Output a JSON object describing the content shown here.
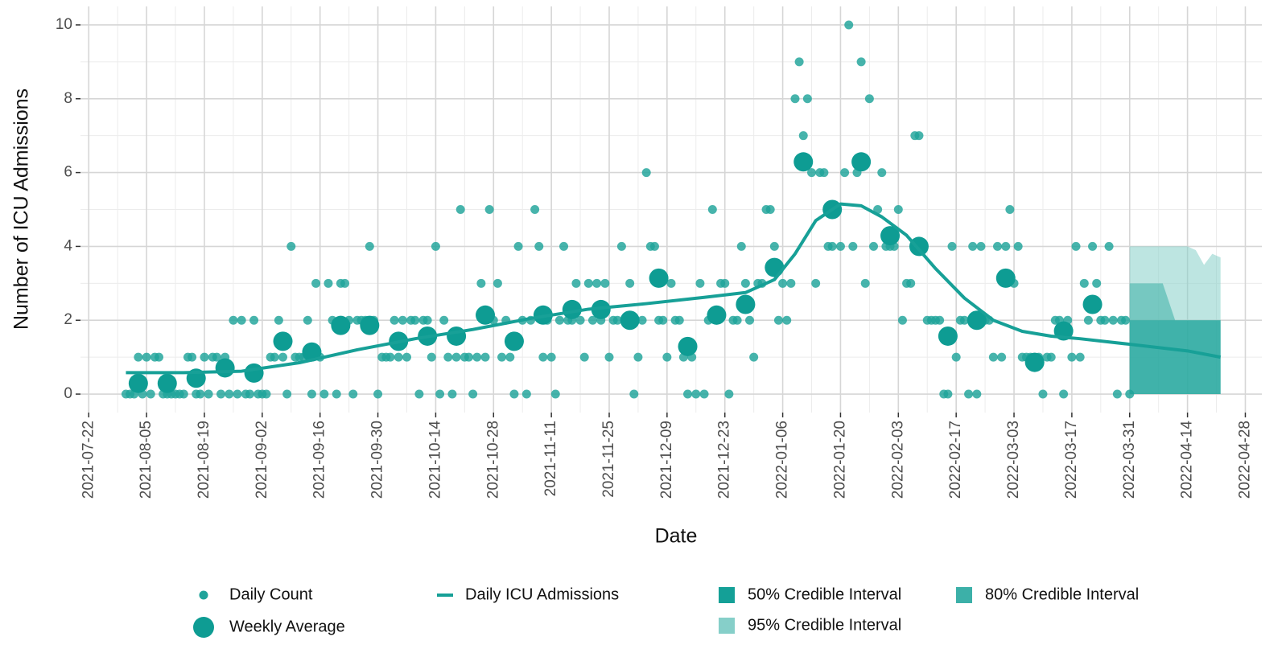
{
  "chart_data": {
    "type": "scatter",
    "xlabel": "Date",
    "ylabel": "Number of ICU Admissions",
    "xlim": [
      "2021-07-20",
      "2022-05-02"
    ],
    "ylim": [
      -0.5,
      10.5
    ],
    "xticks": [
      "2021-07-22",
      "2021-08-05",
      "2021-08-19",
      "2021-09-02",
      "2021-09-16",
      "2021-09-30",
      "2021-10-14",
      "2021-10-28",
      "2021-11-11",
      "2021-11-25",
      "2021-12-09",
      "2021-12-23",
      "2022-01-06",
      "2022-01-20",
      "2022-02-03",
      "2022-02-17",
      "2022-03-03",
      "2022-03-17",
      "2022-03-31",
      "2022-04-14",
      "2022-04-28"
    ],
    "yticks": [
      0,
      2,
      4,
      6,
      8,
      10
    ],
    "grid": true,
    "bands": [
      {
        "name": "95% Credible Interval",
        "color": "#86cfc9",
        "x": [
          "2022-03-31",
          "2022-04-04",
          "2022-04-08",
          "2022-04-11",
          "2022-04-14",
          "2022-04-16",
          "2022-04-18",
          "2022-04-20",
          "2022-04-22"
        ],
        "lower": [
          0,
          0,
          0,
          0,
          0,
          0,
          0,
          0,
          0
        ],
        "upper": [
          4,
          4,
          4,
          4,
          4,
          3.9,
          3.5,
          3.8,
          3.7
        ]
      },
      {
        "name": "80% Credible Interval",
        "color": "#3cb0a8",
        "x": [
          "2022-03-31",
          "2022-04-04",
          "2022-04-08",
          "2022-04-11",
          "2022-04-14",
          "2022-04-16",
          "2022-04-18",
          "2022-04-20",
          "2022-04-22"
        ],
        "lower": [
          0,
          0,
          0,
          0,
          0,
          0,
          0,
          0,
          0
        ],
        "upper": [
          3,
          3,
          3,
          2,
          2,
          2,
          2,
          2,
          2
        ]
      },
      {
        "name": "50% Credible Interval",
        "color": "#14a097",
        "x": [
          "2022-03-31",
          "2022-04-04",
          "2022-04-08",
          "2022-04-11",
          "2022-04-14",
          "2022-04-16",
          "2022-04-18",
          "2022-04-20",
          "2022-04-22"
        ],
        "lower": [
          0,
          0,
          0,
          0,
          0,
          0,
          0,
          0,
          0
        ],
        "upper": [
          2,
          2,
          2,
          2,
          2,
          2,
          2,
          2,
          2
        ]
      }
    ],
    "series": [
      {
        "name": "Daily Count",
        "type": "scatter",
        "color": "#1fa39a",
        "x": [
          "2021-07-31",
          "2021-08-01",
          "2021-08-02",
          "2021-08-03",
          "2021-08-04",
          "2021-08-05",
          "2021-08-06",
          "2021-08-07",
          "2021-08-08",
          "2021-08-09",
          "2021-08-10",
          "2021-08-11",
          "2021-08-12",
          "2021-08-13",
          "2021-08-14",
          "2021-08-15",
          "2021-08-16",
          "2021-08-17",
          "2021-08-18",
          "2021-08-19",
          "2021-08-20",
          "2021-08-21",
          "2021-08-22",
          "2021-08-23",
          "2021-08-24",
          "2021-08-25",
          "2021-08-26",
          "2021-08-27",
          "2021-08-28",
          "2021-08-29",
          "2021-08-30",
          "2021-08-31",
          "2021-09-01",
          "2021-09-02",
          "2021-09-03",
          "2021-09-04",
          "2021-09-05",
          "2021-09-06",
          "2021-09-07",
          "2021-09-08",
          "2021-09-09",
          "2021-09-10",
          "2021-09-11",
          "2021-09-12",
          "2021-09-13",
          "2021-09-14",
          "2021-09-15",
          "2021-09-16",
          "2021-09-17",
          "2021-09-18",
          "2021-09-19",
          "2021-09-20",
          "2021-09-21",
          "2021-09-22",
          "2021-09-23",
          "2021-09-24",
          "2021-09-25",
          "2021-09-26",
          "2021-09-27",
          "2021-09-28",
          "2021-09-29",
          "2021-09-30",
          "2021-10-01",
          "2021-10-02",
          "2021-10-03",
          "2021-10-04",
          "2021-10-05",
          "2021-10-06",
          "2021-10-07",
          "2021-10-08",
          "2021-10-09",
          "2021-10-10",
          "2021-10-11",
          "2021-10-12",
          "2021-10-13",
          "2021-10-14",
          "2021-10-15",
          "2021-10-16",
          "2021-10-17",
          "2021-10-18",
          "2021-10-19",
          "2021-10-20",
          "2021-10-21",
          "2021-10-22",
          "2021-10-23",
          "2021-10-24",
          "2021-10-25",
          "2021-10-26",
          "2021-10-27",
          "2021-10-28",
          "2021-10-29",
          "2021-10-30",
          "2021-10-31",
          "2021-11-01",
          "2021-11-02",
          "2021-11-03",
          "2021-11-04",
          "2021-11-05",
          "2021-11-06",
          "2021-11-07",
          "2021-11-08",
          "2021-11-09",
          "2021-11-10",
          "2021-11-11",
          "2021-11-12",
          "2021-11-13",
          "2021-11-14",
          "2021-11-15",
          "2021-11-16",
          "2021-11-17",
          "2021-11-18",
          "2021-11-19",
          "2021-11-20",
          "2021-11-21",
          "2021-11-22",
          "2021-11-23",
          "2021-11-24",
          "2021-11-25",
          "2021-11-26",
          "2021-11-27",
          "2021-11-28",
          "2021-11-29",
          "2021-11-30",
          "2021-12-01",
          "2021-12-02",
          "2021-12-03",
          "2021-12-04",
          "2021-12-05",
          "2021-12-06",
          "2021-12-07",
          "2021-12-08",
          "2021-12-09",
          "2021-12-10",
          "2021-12-11",
          "2021-12-12",
          "2021-12-13",
          "2021-12-14",
          "2021-12-15",
          "2021-12-16",
          "2021-12-17",
          "2021-12-18",
          "2021-12-19",
          "2021-12-20",
          "2021-12-21",
          "2021-12-22",
          "2021-12-23",
          "2021-12-24",
          "2021-12-25",
          "2021-12-26",
          "2021-12-27",
          "2021-12-28",
          "2021-12-29",
          "2021-12-30",
          "2021-12-31",
          "2022-01-01",
          "2022-01-02",
          "2022-01-03",
          "2022-01-04",
          "2022-01-05",
          "2022-01-06",
          "2022-01-07",
          "2022-01-08",
          "2022-01-09",
          "2022-01-10",
          "2022-01-11",
          "2022-01-12",
          "2022-01-13",
          "2022-01-14",
          "2022-01-15",
          "2022-01-16",
          "2022-01-17",
          "2022-01-18",
          "2022-01-19",
          "2022-01-20",
          "2022-01-21",
          "2022-01-22",
          "2022-01-23",
          "2022-01-24",
          "2022-01-25",
          "2022-01-26",
          "2022-01-27",
          "2022-01-28",
          "2022-01-29",
          "2022-01-30",
          "2022-01-31",
          "2022-02-01",
          "2022-02-02",
          "2022-02-03",
          "2022-02-04",
          "2022-02-05",
          "2022-02-06",
          "2022-02-07",
          "2022-02-08",
          "2022-02-09",
          "2022-02-10",
          "2022-02-11",
          "2022-02-12",
          "2022-02-13",
          "2022-02-14",
          "2022-02-15",
          "2022-02-16",
          "2022-02-17",
          "2022-02-18",
          "2022-02-19",
          "2022-02-20",
          "2022-02-21",
          "2022-02-22",
          "2022-02-23",
          "2022-02-24",
          "2022-02-25",
          "2022-02-26",
          "2022-02-27",
          "2022-02-28",
          "2022-03-01",
          "2022-03-02",
          "2022-03-03",
          "2022-03-04",
          "2022-03-05",
          "2022-03-06",
          "2022-03-07",
          "2022-03-08",
          "2022-03-09",
          "2022-03-10",
          "2022-03-11",
          "2022-03-12",
          "2022-03-13",
          "2022-03-14",
          "2022-03-15",
          "2022-03-16",
          "2022-03-17",
          "2022-03-18",
          "2022-03-19",
          "2022-03-20",
          "2022-03-21",
          "2022-03-22",
          "2022-03-23",
          "2022-03-24",
          "2022-03-25",
          "2022-03-26",
          "2022-03-27",
          "2022-03-28",
          "2022-03-29",
          "2022-03-30",
          "2022-03-31"
        ],
        "values": [
          0,
          0,
          0,
          1,
          0,
          1,
          0,
          1,
          1,
          0,
          0,
          0,
          0,
          0,
          0,
          1,
          1,
          0,
          0,
          1,
          0,
          1,
          1,
          0,
          1,
          0,
          2,
          0,
          2,
          0,
          0,
          2,
          0,
          0,
          0,
          1,
          1,
          2,
          1,
          0,
          4,
          1,
          1,
          1,
          2,
          0,
          3,
          1,
          0,
          3,
          2,
          0,
          3,
          3,
          2,
          0,
          2,
          2,
          2,
          4,
          2,
          0,
          1,
          1,
          1,
          2,
          1,
          2,
          1,
          2,
          2,
          0,
          2,
          2,
          1,
          4,
          0,
          2,
          1,
          0,
          1,
          5,
          1,
          1,
          0,
          1,
          3,
          1,
          5,
          2,
          3,
          1,
          2,
          1,
          0,
          4,
          2,
          0,
          2,
          5,
          4,
          1,
          2,
          1,
          0,
          2,
          4,
          2,
          2,
          3,
          2,
          1,
          3,
          2,
          3,
          2,
          3,
          1,
          2,
          2,
          4,
          2,
          3,
          0,
          1,
          2,
          6,
          4,
          4,
          2,
          2,
          1,
          3,
          2,
          2,
          1,
          0,
          1,
          0,
          3,
          0,
          2,
          5,
          2,
          3,
          3,
          0,
          2,
          2,
          4,
          3,
          2,
          1,
          3,
          3,
          5,
          5,
          4,
          2,
          3,
          2,
          3,
          8,
          9,
          7,
          8,
          6,
          3,
          6,
          6,
          4,
          4,
          5,
          4,
          6,
          10,
          4,
          6,
          9,
          3,
          8,
          4,
          5,
          6,
          4,
          4,
          4,
          5,
          2,
          3,
          3,
          7,
          7,
          4,
          2,
          2,
          2,
          2,
          0,
          0,
          4,
          1,
          2,
          2,
          0,
          4,
          0,
          4,
          2,
          2,
          1,
          4,
          1,
          4,
          5,
          3,
          4,
          1,
          1,
          1,
          1,
          1,
          0,
          1,
          1,
          2,
          2,
          0,
          2,
          1,
          4,
          1,
          3,
          2,
          4,
          3,
          2,
          2,
          4,
          2,
          0,
          2,
          2,
          0
        ]
      },
      {
        "name": "Weekly Average",
        "type": "scatter",
        "color": "#0e9c93",
        "x": [
          "2021-08-03",
          "2021-08-10",
          "2021-08-17",
          "2021-08-24",
          "2021-08-31",
          "2021-09-07",
          "2021-09-14",
          "2021-09-21",
          "2021-09-28",
          "2021-10-05",
          "2021-10-12",
          "2021-10-19",
          "2021-10-26",
          "2021-11-02",
          "2021-11-09",
          "2021-11-16",
          "2021-11-23",
          "2021-11-30",
          "2021-12-07",
          "2021-12-14",
          "2021-12-21",
          "2021-12-28",
          "2022-01-04",
          "2022-01-11",
          "2022-01-18",
          "2022-01-25",
          "2022-02-01",
          "2022-02-08",
          "2022-02-15",
          "2022-02-22",
          "2022-03-01",
          "2022-03-08",
          "2022-03-15",
          "2022-03-22"
        ],
        "values": [
          0.29,
          0.29,
          0.43,
          0.71,
          0.57,
          1.43,
          1.14,
          1.86,
          1.86,
          1.43,
          1.57,
          1.57,
          2.14,
          1.43,
          2.14,
          2.29,
          2.29,
          2.0,
          3.14,
          1.29,
          2.14,
          2.43,
          3.43,
          6.29,
          5.0,
          6.29,
          4.29,
          4.0,
          1.57,
          2.0,
          3.14,
          0.86,
          1.71,
          2.43
        ]
      },
      {
        "name": "Daily ICU Admissions",
        "type": "line",
        "color": "#17a097",
        "x": [
          "2021-07-31",
          "2021-08-14",
          "2021-08-28",
          "2021-09-11",
          "2021-09-25",
          "2021-10-09",
          "2021-10-23",
          "2021-11-06",
          "2021-11-20",
          "2021-12-04",
          "2021-12-18",
          "2021-12-28",
          "2022-01-04",
          "2022-01-09",
          "2022-01-14",
          "2022-01-20",
          "2022-01-25",
          "2022-01-30",
          "2022-02-05",
          "2022-02-12",
          "2022-02-19",
          "2022-02-26",
          "2022-03-05",
          "2022-03-12",
          "2022-03-19",
          "2022-03-31",
          "2022-04-14",
          "2022-04-22"
        ],
        "values": [
          0.58,
          0.58,
          0.62,
          0.85,
          1.2,
          1.5,
          1.75,
          2.05,
          2.3,
          2.45,
          2.62,
          2.75,
          3.1,
          3.8,
          4.7,
          5.15,
          5.1,
          4.8,
          4.3,
          3.4,
          2.6,
          2.0,
          1.7,
          1.57,
          1.5,
          1.35,
          1.17,
          1.0
        ]
      }
    ]
  }
}
